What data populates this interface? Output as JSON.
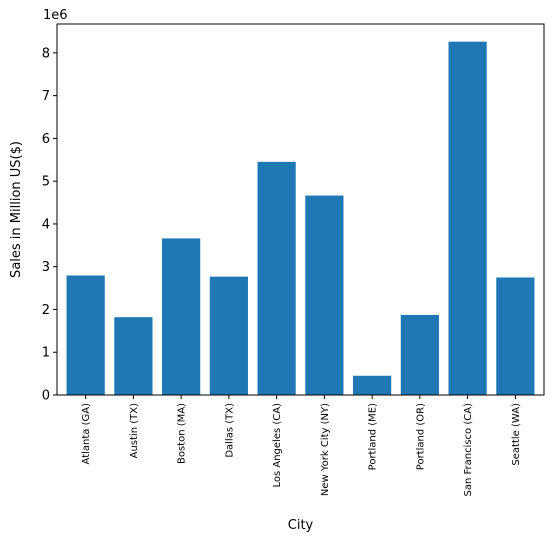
{
  "chart_data": {
    "type": "bar",
    "categories": [
      "Atlanta (GA)",
      "Austin (TX)",
      "Boston (MA)",
      "Dallas (TX)",
      "Los Angeles (CA)",
      "New York City (NY)",
      "Portland (ME)",
      "Portland (OR)",
      "San Francisco (CA)",
      "Seattle (WA)"
    ],
    "values": [
      2795499,
      1819582,
      3661642,
      2767975,
      5452571,
      4664317,
      449758,
      1870732,
      8262204,
      2747755
    ],
    "xlabel": "City",
    "ylabel": "Sales in Million US($)",
    "ylim": [
      0,
      8675314
    ],
    "yticks": [
      0,
      1000000,
      2000000,
      3000000,
      4000000,
      5000000,
      6000000,
      7000000,
      8000000
    ],
    "ytick_labels": [
      "0",
      "1",
      "2",
      "3",
      "4",
      "5",
      "6",
      "7",
      "8"
    ],
    "offset_label": "1e6",
    "bar_color": "#1f77b4",
    "grid": false
  }
}
